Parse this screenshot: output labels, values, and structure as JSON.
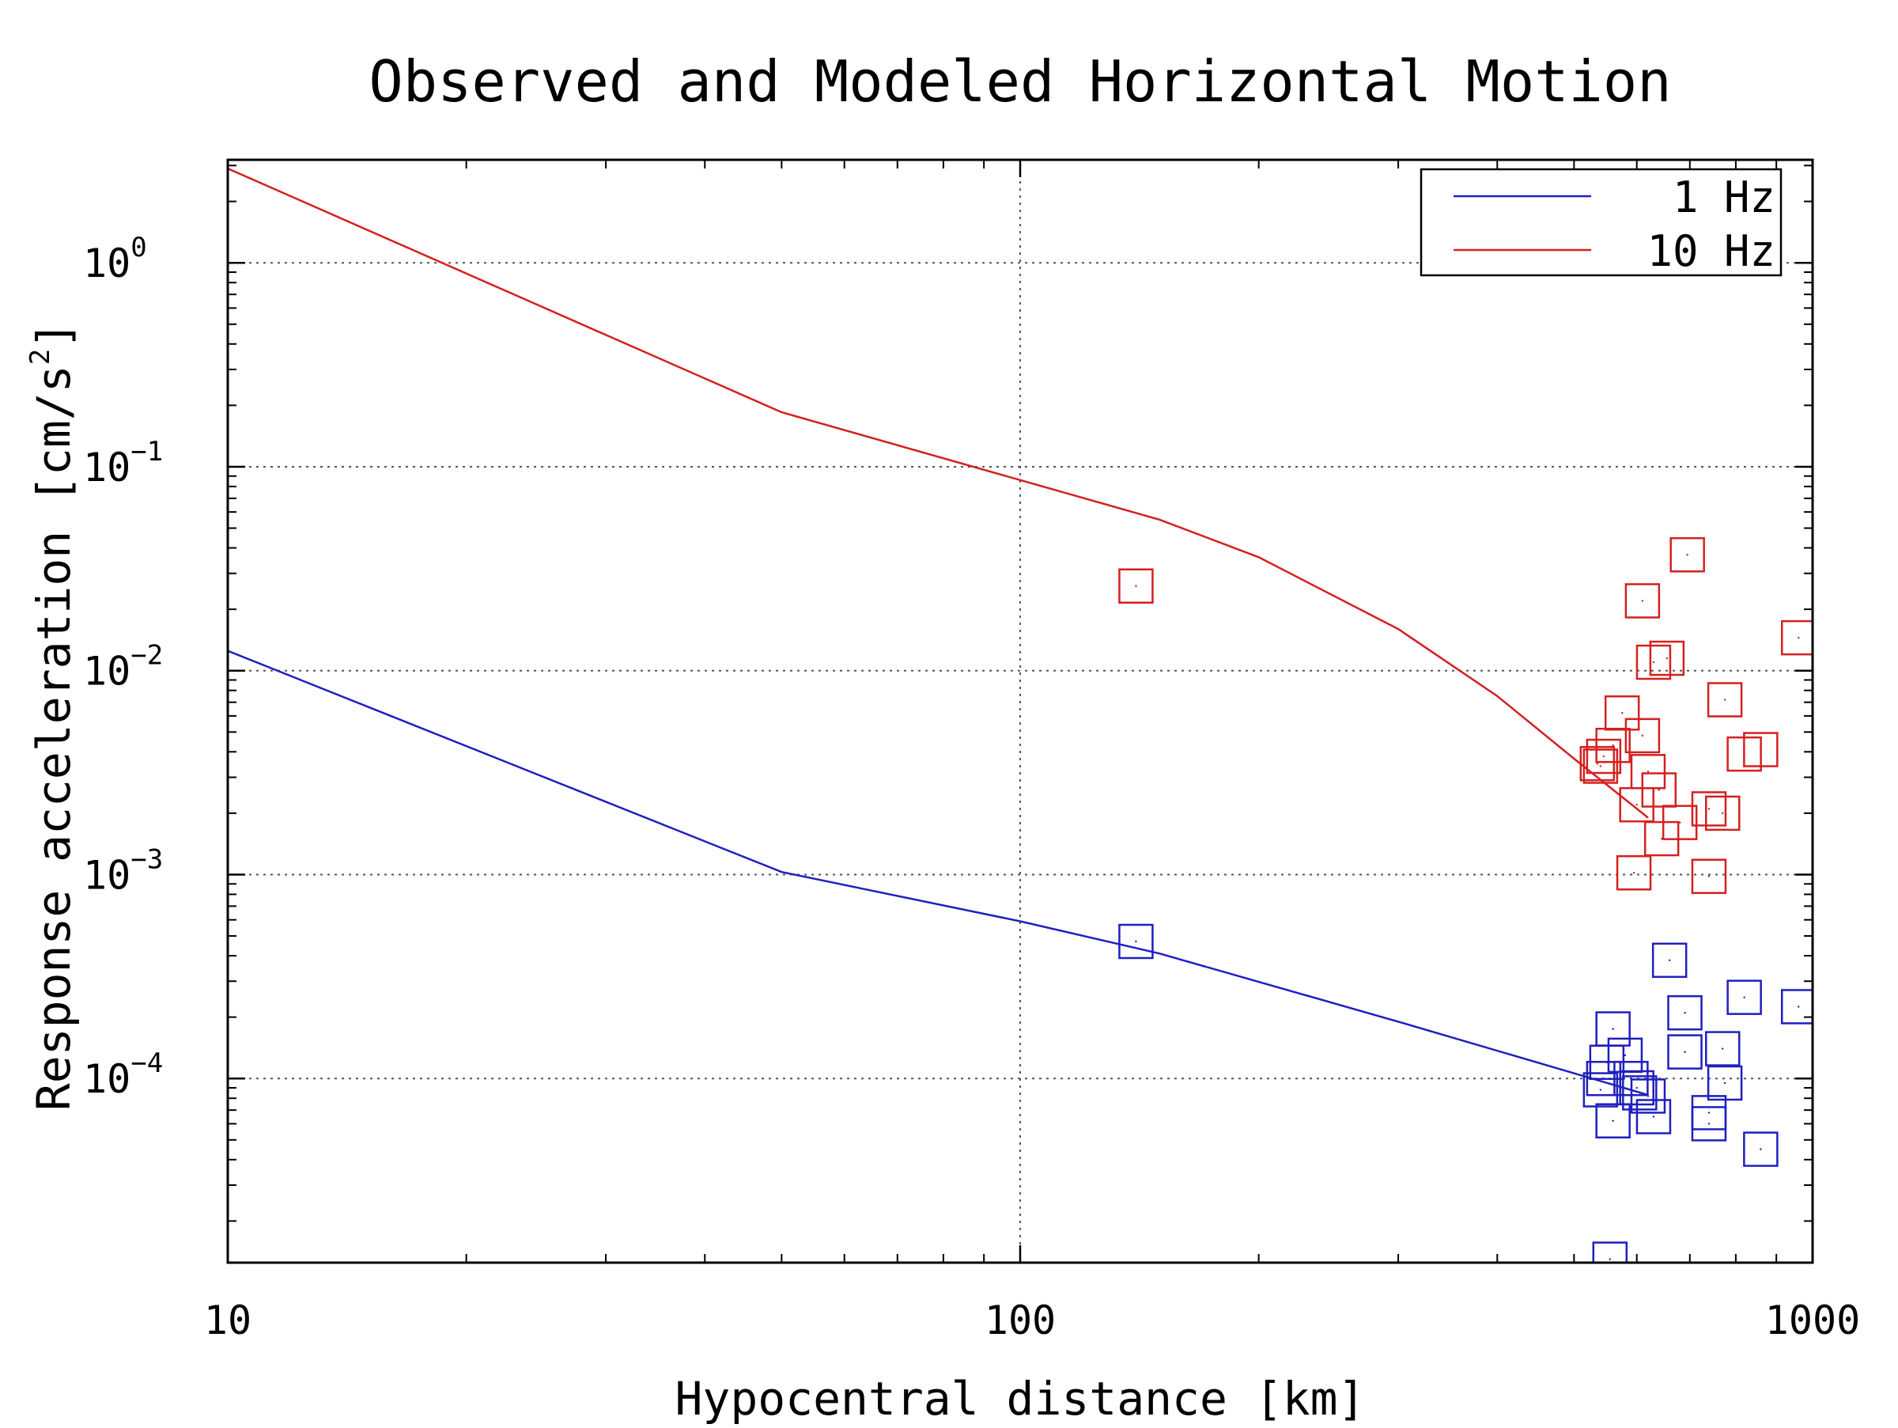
{
  "chart_data": {
    "type": "scatter",
    "title": "Observed and Modeled Horizontal Motion",
    "xlabel": "Hypocentral distance [km]",
    "ylabel_main": "Response acceleration [cm/s",
    "ylabel_sup": "2",
    "ylabel_close": "]",
    "xscale": "log",
    "yscale": "log",
    "xlim": [
      10,
      1000
    ],
    "ylim": [
      1.25e-05,
      3.2
    ],
    "grid": true,
    "legend_position": "top-right",
    "x_ticks": [
      {
        "value": 10,
        "label": "10"
      },
      {
        "value": 100,
        "label": "100"
      },
      {
        "value": 1000,
        "label": "1000"
      }
    ],
    "y_ticks": [
      {
        "value": 1,
        "base": "10",
        "exp": "0"
      },
      {
        "value": 0.1,
        "base": "10",
        "exp": "−1"
      },
      {
        "value": 0.01,
        "base": "10",
        "exp": "−2"
      },
      {
        "value": 0.001,
        "base": "10",
        "exp": "−3"
      },
      {
        "value": 0.0001,
        "base": "10",
        "exp": "−4"
      }
    ],
    "colors": {
      "1 Hz": "#1f1fbf",
      "10 Hz": "#d42020"
    },
    "series": [
      {
        "name": "1 Hz",
        "kind": "model-line",
        "color": "#1f1fbf",
        "points": [
          [
            10,
            0.0125
          ],
          [
            50,
            0.00103
          ],
          [
            100,
            0.00059
          ],
          [
            150,
            0.00041
          ],
          [
            300,
            0.00019
          ],
          [
            620,
            8.3e-05
          ]
        ]
      },
      {
        "name": "10 Hz",
        "kind": "model-line",
        "color": "#d42020",
        "points": [
          [
            10,
            2.9
          ],
          [
            50,
            0.185
          ],
          [
            100,
            0.086
          ],
          [
            150,
            0.055
          ],
          [
            200,
            0.036
          ],
          [
            300,
            0.016
          ],
          [
            400,
            0.0075
          ],
          [
            500,
            0.0037
          ],
          [
            620,
            0.0019
          ]
        ]
      },
      {
        "name": "1 Hz",
        "kind": "observed",
        "color": "#1f1fbf",
        "points": [
          [
            140,
            0.00047
          ],
          [
            555,
            1.3e-05
          ],
          [
            560,
            0.000175
          ],
          [
            580,
            0.00013
          ],
          [
            590,
            0.0001
          ],
          [
            600,
            9e-05
          ],
          [
            605,
            8.5e-05
          ],
          [
            620,
            8.2e-05
          ],
          [
            630,
            6.5e-05
          ],
          [
            550,
            0.00012
          ],
          [
            545,
            0.0001
          ],
          [
            540,
            8.8e-05
          ],
          [
            560,
            6.2e-05
          ],
          [
            660,
            0.00038
          ],
          [
            690,
            0.00021
          ],
          [
            690,
            0.000135
          ],
          [
            740,
            6.8e-05
          ],
          [
            740,
            6e-05
          ],
          [
            770,
            0.00014
          ],
          [
            775,
            9.5e-05
          ],
          [
            820,
            0.00025
          ],
          [
            860,
            4.5e-05
          ],
          [
            960,
            0.000225
          ]
        ]
      },
      {
        "name": "10 Hz",
        "kind": "observed",
        "color": "#d42020",
        "points": [
          [
            140,
            0.026
          ],
          [
            695,
            0.037
          ],
          [
            610,
            0.022
          ],
          [
            655,
            0.0115
          ],
          [
            630,
            0.011
          ],
          [
            960,
            0.0145
          ],
          [
            775,
            0.0072
          ],
          [
            575,
            0.0062
          ],
          [
            610,
            0.0048
          ],
          [
            560,
            0.0043
          ],
          [
            545,
            0.0038
          ],
          [
            535,
            0.0035
          ],
          [
            540,
            0.0034
          ],
          [
            620,
            0.0032
          ],
          [
            640,
            0.0026
          ],
          [
            600,
            0.0022
          ],
          [
            680,
            0.0018
          ],
          [
            645,
            0.0015
          ],
          [
            740,
            0.0021
          ],
          [
            770,
            0.002
          ],
          [
            820,
            0.0039
          ],
          [
            860,
            0.0041
          ],
          [
            740,
            0.00098
          ],
          [
            595,
            0.00102
          ]
        ]
      }
    ]
  }
}
